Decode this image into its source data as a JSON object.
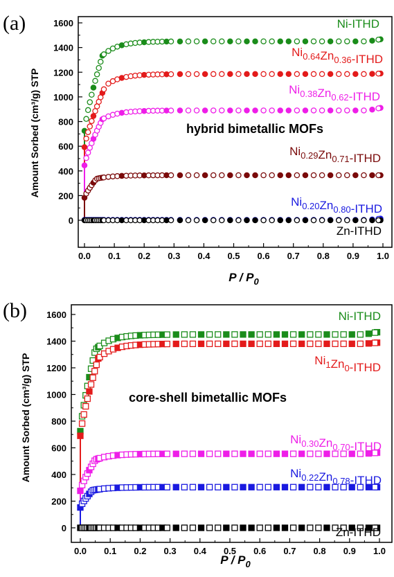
{
  "chart_data": [
    {
      "type": "scatter",
      "panel_label": "(a)",
      "title": "",
      "xlabel": "P / P",
      "xlabel_sub": "0",
      "ylabel": "Amount Sorbed (cm³/g) STP",
      "xlim": [
        -0.02,
        1.02
      ],
      "ylim": [
        -200,
        1650
      ],
      "xticks": [
        "0.0",
        "0.1",
        "0.2",
        "0.3",
        "0.4",
        "0.5",
        "0.6",
        "0.7",
        "0.8",
        "0.9",
        "1.0"
      ],
      "yticks": [
        "0",
        "200",
        "400",
        "600",
        "800",
        "1000",
        "1200",
        "1400",
        "1600"
      ],
      "marker": "circle",
      "annotation": "hybrid bimetallic MOFs",
      "series": [
        {
          "name": "Ni-ITHD",
          "label_parts": [
            [
              "Ni-ITHD",
              ""
            ]
          ],
          "color": "#1a8c1a",
          "plateau": 1450,
          "end": 1470,
          "knee": 0.06
        },
        {
          "name": "Ni0.64Zn0.36-ITHD",
          "label_parts": [
            [
              "Ni",
              "0.64"
            ],
            [
              "Zn",
              "0.36"
            ],
            [
              "-ITHD",
              ""
            ]
          ],
          "color": "#e31b1b",
          "plateau": 1185,
          "end": 1190,
          "knee": 0.07
        },
        {
          "name": "Ni0.38Zn0.62-ITHD",
          "label_parts": [
            [
              "Ni",
              "0.38"
            ],
            [
              "Zn",
              "0.62"
            ],
            [
              "-ITHD",
              ""
            ]
          ],
          "color": "#ee1ee8",
          "plateau": 890,
          "end": 915,
          "knee": 0.06
        },
        {
          "name": "Ni0.29Zn0.71-ITHD",
          "label_parts": [
            [
              "Ni",
              "0.29"
            ],
            [
              "Zn",
              "0.71"
            ],
            [
              "-ITHD",
              ""
            ]
          ],
          "color": "#7a0a0a",
          "plateau": 365,
          "end": 365,
          "knee": 0.04
        },
        {
          "name": "Ni0.20Zn0.80-ITHD",
          "label_parts": [
            [
              "Ni",
              "0.20"
            ],
            [
              "Zn",
              "0.80"
            ],
            [
              "-ITHD",
              ""
            ]
          ],
          "color": "#1a1ae0",
          "plateau": 3,
          "end": 15,
          "knee": 0.01
        },
        {
          "name": "Zn-ITHD",
          "label_parts": [
            [
              "Zn-ITHD",
              ""
            ]
          ],
          "color": "#000000",
          "plateau": 0,
          "end": 0,
          "knee": 0.01
        }
      ]
    },
    {
      "type": "scatter",
      "panel_label": "(b)",
      "title": "",
      "xlabel": "P / P",
      "xlabel_sub": "0",
      "ylabel": "Amount Sorbed (cm³/g) STP",
      "xlim": [
        -0.02,
        1.02
      ],
      "ylim": [
        -100,
        1650
      ],
      "xticks": [
        "0.0",
        "0.1",
        "0.2",
        "0.3",
        "0.4",
        "0.5",
        "0.6",
        "0.7",
        "0.8",
        "0.9",
        "1.0"
      ],
      "yticks": [
        "0",
        "200",
        "400",
        "600",
        "800",
        "1000",
        "1200",
        "1400",
        "1600"
      ],
      "marker": "square",
      "annotation": "core-shell bimetallic MOFs",
      "series": [
        {
          "name": "Ni-ITHD",
          "label_parts": [
            [
              "Ni-ITHD",
              ""
            ]
          ],
          "color": "#1a8c1a",
          "plateau": 1450,
          "end": 1470,
          "knee": 0.05
        },
        {
          "name": "Ni1Zn0-ITHD",
          "label_parts": [
            [
              "Ni",
              "1"
            ],
            [
              "Zn",
              "0"
            ],
            [
              "-ITHD",
              ""
            ]
          ],
          "color": "#e31b1b",
          "plateau": 1380,
          "end": 1390,
          "knee": 0.06
        },
        {
          "name": "Ni0.30Zn0.70-ITHD",
          "label_parts": [
            [
              "Ni",
              "0.30"
            ],
            [
              "Zn",
              "0.70"
            ],
            [
              "-ITHD",
              ""
            ]
          ],
          "color": "#ee1ee8",
          "plateau": 555,
          "end": 565,
          "knee": 0.05
        },
        {
          "name": "Ni0.22Zn0.78-ITHD",
          "label_parts": [
            [
              "Ni",
              "0.22"
            ],
            [
              "Zn",
              "0.78"
            ],
            [
              "-ITHD",
              ""
            ]
          ],
          "color": "#1a1ae0",
          "plateau": 305,
          "end": 305,
          "knee": 0.04
        },
        {
          "name": "Zn-ITHD",
          "label_parts": [
            [
              "Zn-ITHD",
              ""
            ]
          ],
          "color": "#000000",
          "plateau": 0,
          "end": 0,
          "knee": 0.01
        }
      ]
    }
  ]
}
